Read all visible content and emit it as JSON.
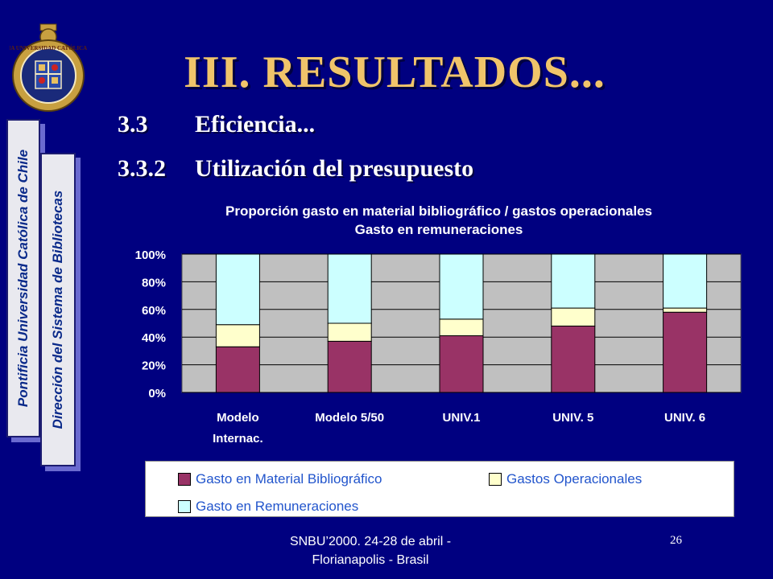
{
  "slide": {
    "title": "III. RESULTADOS...",
    "section_num": "3.3",
    "section_label": "Eficiencia...",
    "subsection_num": "3.3.2",
    "subsection_label": "Utilización  del presupuesto",
    "side_text_1": "Pontificia Universidad Católica de Chile",
    "side_text_2": "Dirección del Sistema de Bibliotecas",
    "footer_line1": "SNBU’2000.  24-28 de abril -",
    "footer_line2": "Florianapolis - Brasil",
    "page_number": "26",
    "background_color": "#000080",
    "title_color": "#f0c46a"
  },
  "logo": {
    "icon": "university-crest-icon",
    "text": "PONTIFICIA UNIVERSIDAD CATÓLICA DE CHILE"
  },
  "chart_data": {
    "type": "bar",
    "stacked": true,
    "percent_stacked": true,
    "title": "Proporción gasto en material bibliográfico / gastos operacionales",
    "subtitle": "Gasto en remuneraciones",
    "categories": [
      [
        "Modelo",
        "Internac."
      ],
      [
        "Modelo 5/50"
      ],
      [
        "UNIV.1"
      ],
      [
        "UNIV. 5"
      ],
      [
        "UNIV. 6"
      ]
    ],
    "series": [
      {
        "name": "Gasto en Material Bibliográfico",
        "color": "#993366",
        "values": [
          33,
          37,
          41,
          48,
          58
        ]
      },
      {
        "name": "Gastos Operacionales",
        "color": "#ffffcc",
        "values": [
          16,
          13,
          12,
          13,
          3
        ]
      },
      {
        "name": "Gasto en Remuneraciones",
        "color": "#ccffff",
        "values": [
          51,
          50,
          47,
          39,
          39
        ]
      }
    ],
    "y_ticks": [
      "0%",
      "20%",
      "40%",
      "60%",
      "80%",
      "100%"
    ],
    "ylim": [
      0,
      100
    ],
    "grid": true,
    "plot_background": "#c0c0c0",
    "legend_position": "bottom"
  }
}
